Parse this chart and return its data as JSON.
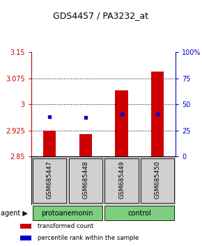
{
  "title": "GDS4457 / PA3232_at",
  "samples": [
    "GSM685447",
    "GSM685448",
    "GSM685449",
    "GSM685450"
  ],
  "bar_values": [
    2.925,
    2.915,
    3.04,
    3.095
  ],
  "bar_base": 2.85,
  "bar_color": "#cc0000",
  "dot_values": [
    2.965,
    2.963,
    2.972,
    2.972
  ],
  "dot_color": "#0000cc",
  "ylim_left": [
    2.85,
    3.15
  ],
  "ylim_right": [
    0,
    100
  ],
  "yticks_left": [
    2.85,
    2.925,
    3.0,
    3.075,
    3.15
  ],
  "ytick_labels_left": [
    "2.85",
    "2.925",
    "3",
    "3.075",
    "3.15"
  ],
  "yticks_right": [
    0,
    25,
    50,
    75,
    100
  ],
  "ytick_labels_right": [
    "0",
    "25",
    "50",
    "75",
    "100%"
  ],
  "grid_values": [
    2.925,
    3.0,
    3.075
  ],
  "legend_items": [
    {
      "color": "#cc0000",
      "label": "transformed count"
    },
    {
      "color": "#0000cc",
      "label": "percentile rank within the sample"
    }
  ],
  "bar_width": 0.35,
  "title_fontsize": 9,
  "tick_fontsize": 7,
  "left_axis_color": "#cc0000",
  "right_axis_color": "#0000cc",
  "agent_row": [
    {
      "label": "protoanemonin",
      "start": 0,
      "end": 2,
      "color": "#7dce7d"
    },
    {
      "label": "control",
      "start": 2,
      "end": 4,
      "color": "#7dce7d"
    }
  ]
}
